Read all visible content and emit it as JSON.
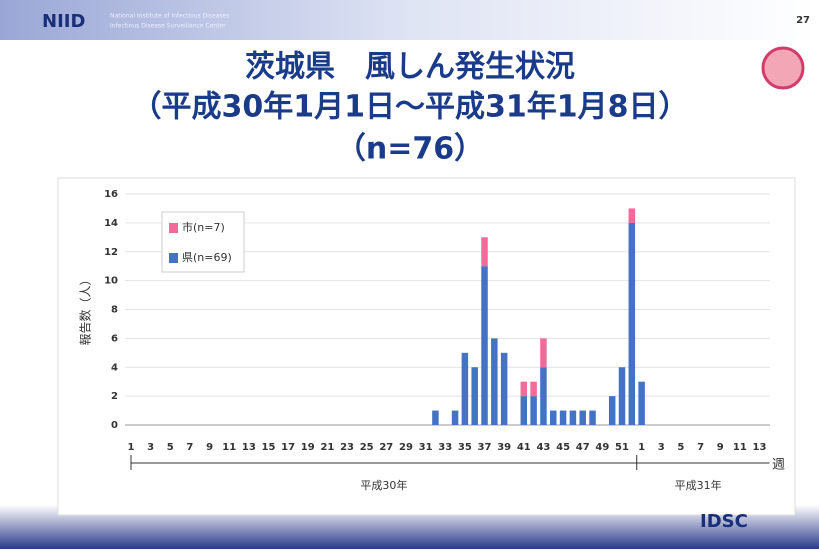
{
  "header": {
    "logo": "NIID",
    "org": [
      "National Institute of Infectious Diseases",
      "Infectious Disease Surveillance Center"
    ],
    "page": "27"
  },
  "title_lines": [
    "茨城県　風しん発生状況",
    "（平成30年1月1日～平成31年1月8日）",
    "（n=76）"
  ],
  "footer": {
    "logo": "IDSC"
  },
  "chart_data": {
    "type": "bar",
    "stacked": true,
    "ylabel": "報告数（人）",
    "xlabel": "週",
    "groups": [
      "平成30年",
      "平成31年"
    ],
    "categories": [
      "1",
      null,
      "3",
      null,
      "5",
      null,
      "7",
      null,
      "9",
      null,
      "11",
      null,
      "13",
      null,
      "15",
      null,
      "17",
      null,
      "19",
      null,
      "21",
      null,
      "23",
      null,
      "25",
      null,
      "27",
      null,
      "29",
      null,
      "31",
      null,
      "33",
      null,
      "35",
      null,
      "37",
      null,
      "39",
      null,
      "41",
      null,
      "43",
      null,
      "45",
      null,
      "47",
      null,
      "49",
      null,
      "51",
      null,
      "1",
      null,
      "3",
      null,
      "5",
      null,
      "7",
      null,
      "9",
      null,
      "11",
      null,
      "13"
    ],
    "series": [
      {
        "name": "県(n=69)",
        "color": "#4472c4",
        "values": [
          0,
          0,
          0,
          0,
          0,
          0,
          0,
          0,
          0,
          0,
          0,
          0,
          0,
          0,
          0,
          0,
          0,
          0,
          0,
          0,
          0,
          0,
          0,
          0,
          0,
          0,
          0,
          0,
          0,
          0,
          0,
          1,
          0,
          1,
          5,
          4,
          11,
          6,
          5,
          0,
          2,
          2,
          4,
          1,
          1,
          1,
          1,
          1,
          0,
          2,
          4,
          14,
          3,
          0,
          0,
          0,
          0,
          0,
          0,
          0,
          0,
          0,
          0,
          0,
          0
        ]
      },
      {
        "name": "市(n=7)",
        "color": "#f06a9a",
        "values": [
          0,
          0,
          0,
          0,
          0,
          0,
          0,
          0,
          0,
          0,
          0,
          0,
          0,
          0,
          0,
          0,
          0,
          0,
          0,
          0,
          0,
          0,
          0,
          0,
          0,
          0,
          0,
          0,
          0,
          0,
          0,
          0,
          0,
          0,
          0,
          0,
          2,
          0,
          0,
          0,
          1,
          1,
          2,
          0,
          0,
          0,
          0,
          0,
          0,
          0,
          0,
          1,
          0,
          0,
          0,
          0,
          0,
          0,
          0,
          0,
          0,
          0,
          0,
          0,
          0
        ]
      }
    ],
    "ylim": [
      0,
      16
    ],
    "yticks": [
      0,
      2,
      4,
      6,
      8,
      10,
      12,
      14,
      16
    ],
    "grid": true
  }
}
